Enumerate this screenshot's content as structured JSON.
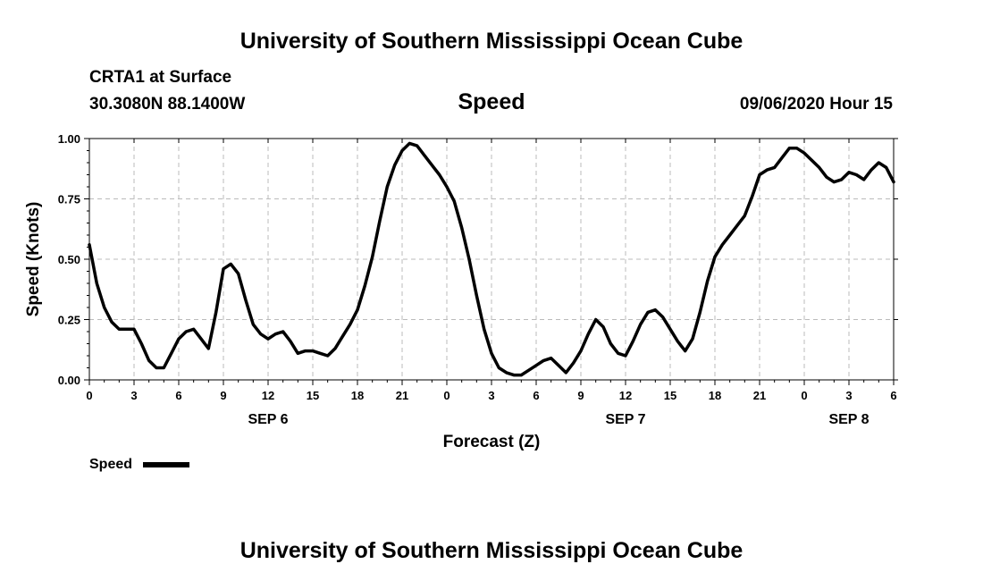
{
  "header": {
    "top_title": "University of Southern Mississippi Ocean Cube",
    "station": "CRTA1 at Surface",
    "coords": "30.3080N 88.1400W",
    "variable": "Speed",
    "datetime": "09/06/2020 Hour 15"
  },
  "footer": {
    "bottom_title": "University of Southern Mississippi Ocean Cube"
  },
  "legend": {
    "label": "Speed"
  },
  "colors": {
    "line": "#000000",
    "grid": "#bbbbbb"
  },
  "chart_data": {
    "type": "line",
    "title": "Speed",
    "xlabel": "Forecast (Z)",
    "ylabel": "Speed (Knots)",
    "ylim": [
      0,
      1
    ],
    "yticks": [
      "0.00",
      "0.25",
      "0.50",
      "0.75",
      "1.00"
    ],
    "xlim_hours": [
      0,
      54
    ],
    "xtick_labels": [
      "0",
      "3",
      "6",
      "9",
      "12",
      "15",
      "18",
      "21",
      "0",
      "3",
      "6",
      "9",
      "12",
      "15",
      "18",
      "21",
      "0",
      "3",
      "6"
    ],
    "date_labels": [
      {
        "label": "SEP 6",
        "hour": 12
      },
      {
        "label": "SEP 7",
        "hour": 36
      },
      {
        "label": "SEP 8",
        "hour": 51
      }
    ],
    "grid": true,
    "legend_position": "bottom-left",
    "series": [
      {
        "name": "Speed",
        "x": [
          0,
          0.5,
          1,
          1.5,
          2,
          2.5,
          3,
          3.5,
          4,
          4.5,
          5,
          5.5,
          6,
          6.5,
          7,
          7.5,
          8,
          8.5,
          9,
          9.5,
          10,
          10.5,
          11,
          11.5,
          12,
          12.5,
          13,
          13.5,
          14,
          14.5,
          15,
          15.5,
          16,
          16.5,
          17,
          17.5,
          18,
          18.5,
          19,
          19.5,
          20,
          20.5,
          21,
          21.5,
          22,
          22.5,
          23,
          23.5,
          24,
          24.5,
          25,
          25.5,
          26,
          26.5,
          27,
          27.5,
          28,
          28.5,
          29,
          29.5,
          30,
          30.5,
          31,
          31.5,
          32,
          32.5,
          33,
          33.5,
          34,
          34.5,
          35,
          35.5,
          36,
          36.5,
          37,
          37.5,
          38,
          38.5,
          39,
          39.5,
          40,
          40.5,
          41,
          41.5,
          42,
          42.5,
          43,
          43.5,
          44,
          44.5,
          45,
          45.5,
          46,
          46.5,
          47,
          47.5,
          48,
          48.5,
          49,
          49.5,
          50,
          50.5,
          51,
          51.5,
          52,
          52.5,
          53,
          53.5,
          54
        ],
        "values": [
          0.56,
          0.4,
          0.3,
          0.24,
          0.21,
          0.21,
          0.21,
          0.15,
          0.08,
          0.05,
          0.05,
          0.11,
          0.17,
          0.2,
          0.21,
          0.17,
          0.13,
          0.28,
          0.46,
          0.48,
          0.44,
          0.33,
          0.23,
          0.19,
          0.17,
          0.19,
          0.2,
          0.16,
          0.11,
          0.12,
          0.12,
          0.11,
          0.1,
          0.13,
          0.18,
          0.23,
          0.29,
          0.39,
          0.51,
          0.66,
          0.8,
          0.89,
          0.95,
          0.98,
          0.97,
          0.93,
          0.89,
          0.85,
          0.8,
          0.74,
          0.63,
          0.5,
          0.35,
          0.21,
          0.11,
          0.05,
          0.03,
          0.02,
          0.02,
          0.04,
          0.06,
          0.08,
          0.09,
          0.06,
          0.03,
          0.07,
          0.12,
          0.19,
          0.25,
          0.22,
          0.15,
          0.11,
          0.1,
          0.16,
          0.23,
          0.28,
          0.29,
          0.26,
          0.21,
          0.16,
          0.12,
          0.17,
          0.28,
          0.41,
          0.51,
          0.56,
          0.6,
          0.64,
          0.68,
          0.76,
          0.85,
          0.87,
          0.88,
          0.92,
          0.96,
          0.96,
          0.94,
          0.91,
          0.88,
          0.84,
          0.82,
          0.83,
          0.86,
          0.85,
          0.83,
          0.87,
          0.9,
          0.88,
          0.82
        ]
      }
    ]
  }
}
